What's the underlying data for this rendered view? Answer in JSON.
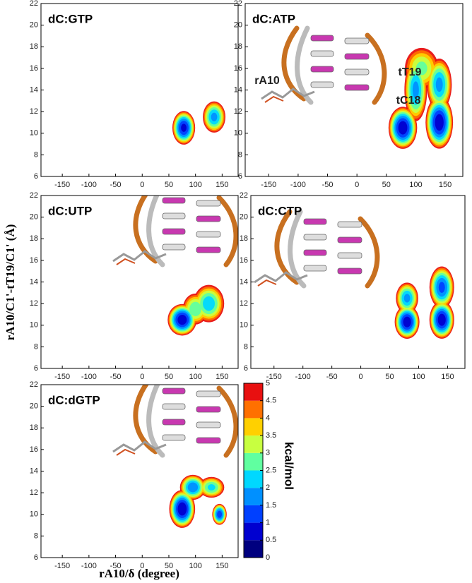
{
  "chart_data": [
    {
      "type": "contour",
      "title": "dC:GTP",
      "xlim": [
        -190,
        180
      ],
      "ylim": [
        6,
        22
      ],
      "xticks": [
        -150,
        -100,
        -50,
        0,
        50,
        100,
        150
      ],
      "yticks": [
        6,
        8,
        10,
        12,
        14,
        16,
        18,
        20,
        22
      ],
      "basins": {
        "x": [
          78,
          135
        ],
        "y": [
          10.5,
          11.5
        ],
        "energy": [
          0.5,
          1.5
        ],
        "rx": [
          22,
          22
        ],
        "ry": [
          1.6,
          1.5
        ]
      }
    },
    {
      "type": "contour",
      "title": "dC:ATP",
      "annotations": [
        "rA10",
        "tT19",
        "tC18"
      ],
      "xlim": [
        -190,
        180
      ],
      "ylim": [
        6,
        22
      ],
      "xticks": [
        -150,
        -100,
        -50,
        0,
        50,
        100,
        150
      ],
      "yticks": [
        6,
        8,
        10,
        12,
        14,
        16,
        18,
        20,
        22
      ],
      "basins": {
        "x": [
          78,
          140,
          140,
          100,
          110
        ],
        "y": [
          10.5,
          11,
          14.5,
          14,
          16
        ],
        "energy": [
          0.3,
          0.3,
          1.5,
          1.5,
          2.5
        ],
        "rx": [
          25,
          24,
          22,
          20,
          30
        ],
        "ry": [
          2,
          2.5,
          2.5,
          3,
          2
        ]
      }
    },
    {
      "type": "contour",
      "title": "dC:UTP",
      "xlim": [
        -190,
        180
      ],
      "ylim": [
        6,
        22
      ],
      "xticks": [
        -150,
        -100,
        -50,
        0,
        50,
        100,
        150
      ],
      "yticks": [
        6,
        8,
        10,
        12,
        14,
        16,
        18,
        20,
        22
      ],
      "basins": {
        "x": [
          75,
          125,
          100
        ],
        "y": [
          10.5,
          12,
          11.5
        ],
        "energy": [
          0.3,
          1.8,
          2.2
        ],
        "rx": [
          28,
          30,
          25
        ],
        "ry": [
          1.5,
          1.8,
          1.5
        ]
      }
    },
    {
      "type": "contour",
      "title": "dC:CTP",
      "xlim": [
        -190,
        180
      ],
      "ylim": [
        6,
        22
      ],
      "xticks": [
        -150,
        -100,
        -50,
        0,
        50,
        100,
        150
      ],
      "yticks": [
        6,
        8,
        10,
        12,
        14,
        16,
        18,
        20,
        22
      ],
      "basins": {
        "x": [
          80,
          80,
          140,
          140
        ],
        "y": [
          10.3,
          12.5,
          10.5,
          13.5
        ],
        "energy": [
          0.3,
          1.5,
          0.3,
          1
        ],
        "rx": [
          22,
          20,
          22,
          22
        ],
        "ry": [
          1.6,
          1.5,
          1.8,
          2
        ]
      }
    },
    {
      "type": "contour",
      "title": "dC:dGTP",
      "xlim": [
        -190,
        180
      ],
      "ylim": [
        6,
        22
      ],
      "xticks": [
        -150,
        -100,
        -50,
        0,
        50,
        100,
        150
      ],
      "yticks": [
        6,
        8,
        10,
        12,
        14,
        16,
        18,
        20,
        22
      ],
      "basins": {
        "x": [
          75,
          95,
          130,
          145
        ],
        "y": [
          10.5,
          12.5,
          12.5,
          10
        ],
        "energy": [
          0.2,
          1.2,
          2,
          0.8
        ],
        "rx": [
          25,
          25,
          25,
          14
        ],
        "ry": [
          1.8,
          1.2,
          1,
          1
        ]
      }
    },
    {
      "type": "colorbar",
      "label": "kcal/mol",
      "ylim": [
        0,
        5
      ],
      "ticks": [
        0,
        0.5,
        1,
        1.5,
        2,
        2.5,
        3,
        3.5,
        4,
        4.5,
        5
      ],
      "colors": [
        "#00007f",
        "#0000d0",
        "#0040ff",
        "#0090ff",
        "#00d8ff",
        "#60ffa0",
        "#c8ff40",
        "#ffd000",
        "#ff7000",
        "#e81010",
        "#ffffff"
      ]
    }
  ],
  "xlabel": "rA10/δ (degree)",
  "ylabel": "rA10/C1'-tT19/C1' (Å)"
}
